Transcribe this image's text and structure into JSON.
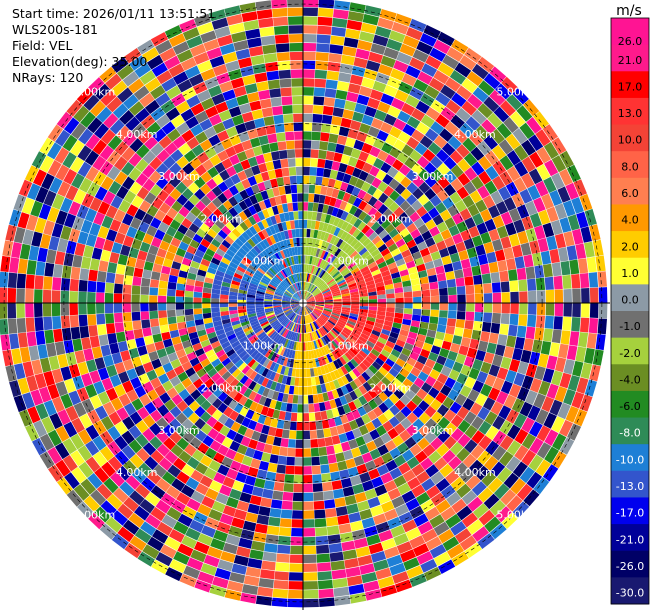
{
  "header": {
    "start_time": "Start time: 2026/01/11 13:51:51",
    "instrument": "WLS200s-181",
    "field": "Field: VEL",
    "elevation": "Elevation(deg): 35.00",
    "nrays": "NRays: 120"
  },
  "chart_data": {
    "type": "heatmap",
    "subtype": "ppi-polar",
    "field": "VEL",
    "units": "m/s",
    "elevation_deg": 35.0,
    "n_rays": 120,
    "range_rings_km": [
      1.0,
      2.0,
      3.0,
      4.0,
      5.0
    ],
    "range_ring_labels": [
      "1.00km",
      "2.00km",
      "3.00km",
      "4.00km",
      "5.00km"
    ],
    "max_range_km": 5.0,
    "colorbar": {
      "title": "m/s",
      "ticks": [
        "26.0",
        "21.0",
        "17.0",
        "13.0",
        "10.0",
        "8.0",
        "6.0",
        "4.0",
        "2.0",
        "1.0",
        "0.0",
        "-1.0",
        "-2.0",
        "-4.0",
        "-6.0",
        "-8.0",
        "-10.0",
        "-13.0",
        "-17.0",
        "-21.0",
        "-26.0",
        "-30.0"
      ],
      "colors": [
        "#ff1493",
        "#ff1a8c",
        "#ff0000",
        "#ff3333",
        "#f44336",
        "#ff6347",
        "#ff7f50",
        "#ff9900",
        "#ffcc00",
        "#ffff33",
        "#8c9aa6",
        "#707070",
        "#a6d13d",
        "#6b8e23",
        "#228b22",
        "#2e8b57",
        "#1e7fd6",
        "#3355cc",
        "#0000ee",
        "#000099",
        "#000066",
        "#191970"
      ],
      "range": [
        -30,
        30
      ]
    }
  }
}
